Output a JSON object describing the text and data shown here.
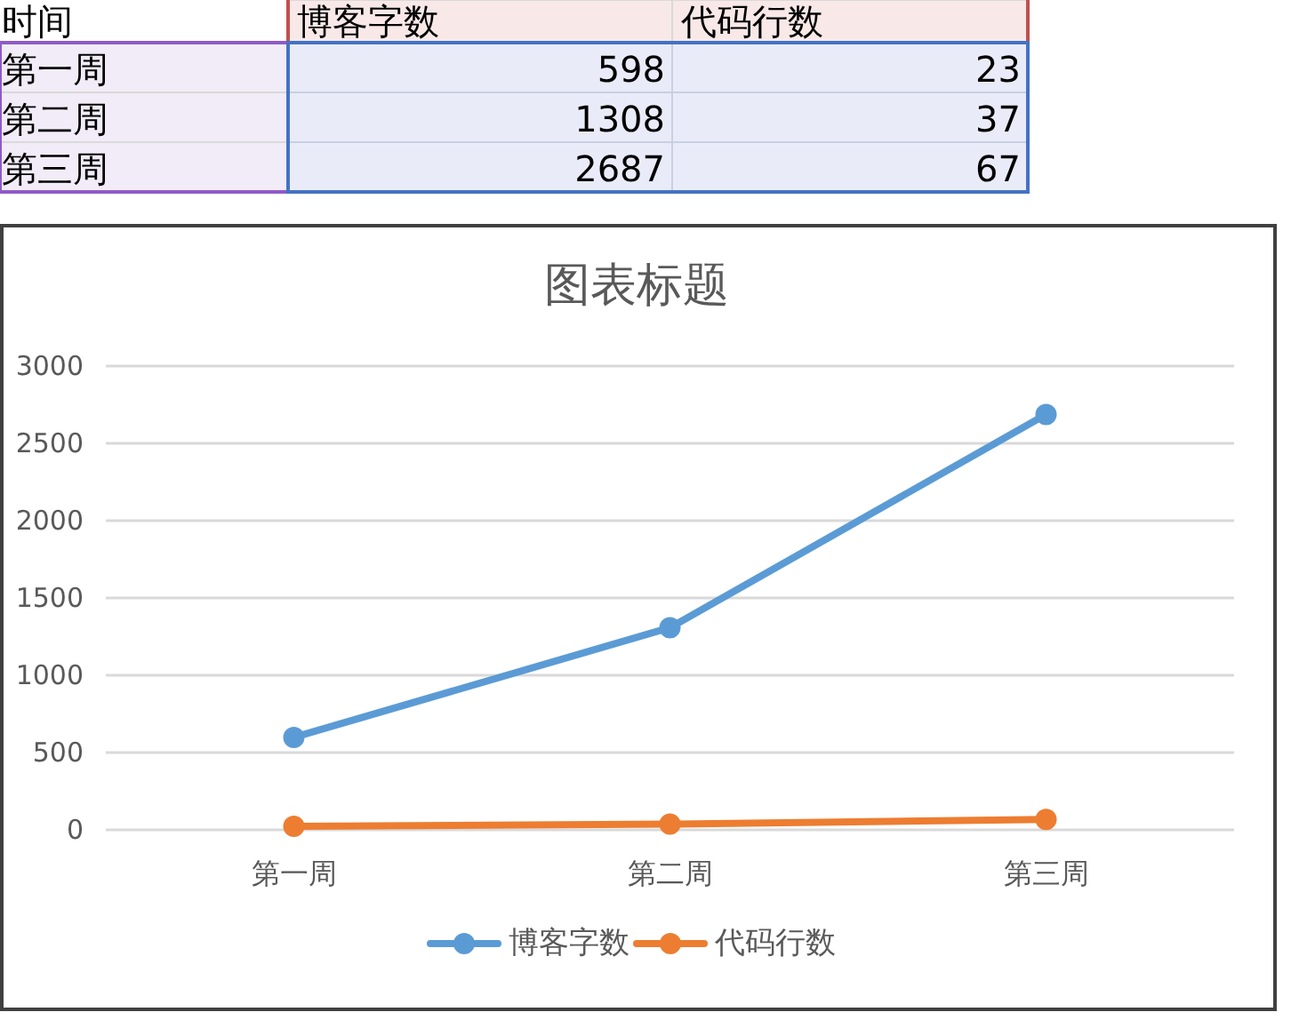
{
  "chart_data": [
    {
      "type": "other",
      "categories": [
        "第一周",
        "第二周",
        "第三周"
      ],
      "series": [
        {
          "name": "博客字数",
          "values": [
            598,
            1308,
            2687
          ]
        },
        {
          "name": "代码行数",
          "values": [
            23,
            37,
            67
          ]
        }
      ],
      "data_labels": true,
      "annotations": [
        "时间"
      ]
    },
    {
      "type": "line",
      "title": "图表标题",
      "categories": [
        "第一周",
        "第二周",
        "第三周"
      ],
      "series": [
        {
          "name": "博客字数",
          "color": "#5b9bd5",
          "values": [
            598,
            1308,
            2687
          ]
        },
        {
          "name": "代码行数",
          "color": "#ed7d31",
          "values": [
            23,
            37,
            67
          ]
        }
      ],
      "ylim": [
        0,
        3000
      ],
      "yticks": [
        0,
        500,
        1000,
        1500,
        2000,
        2500,
        3000
      ],
      "grid": "y",
      "legend": "bottom",
      "marker": "circle",
      "line_style": "solid"
    }
  ]
}
